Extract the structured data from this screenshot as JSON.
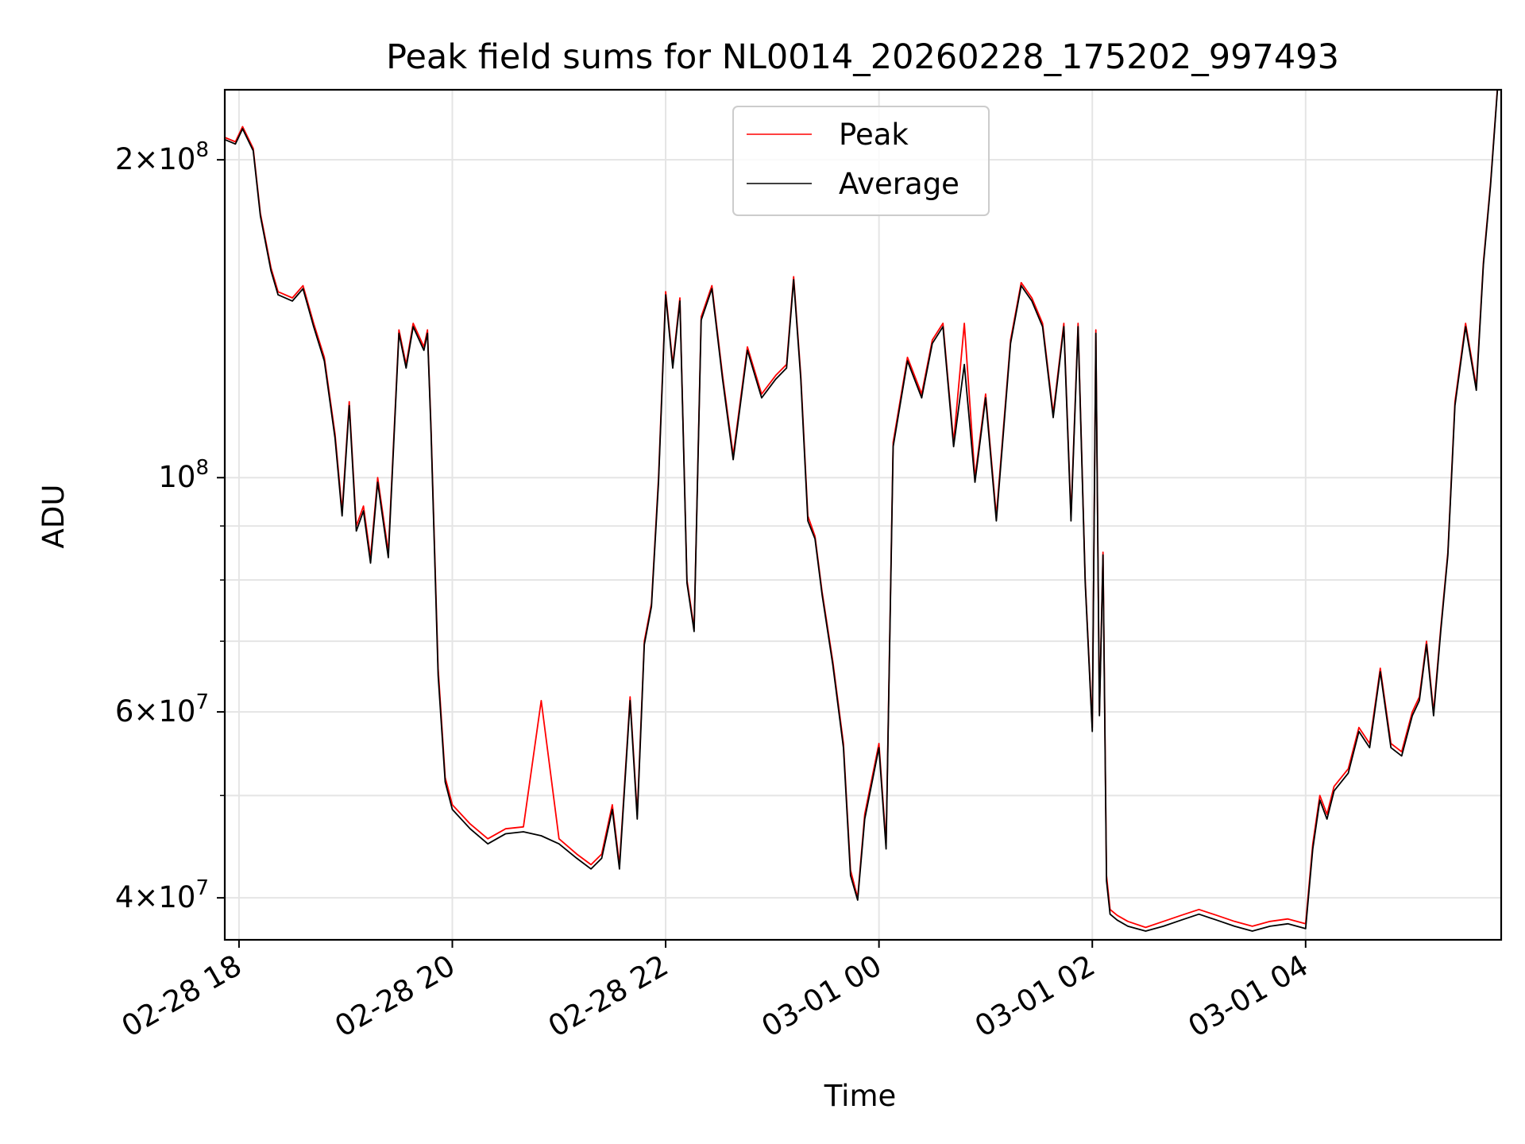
{
  "chart_data": {
    "type": "line",
    "title": "Peak field sums for NL0014_20260228_175202_997493",
    "xlabel": "Time",
    "ylabel": "ADU",
    "yscale": "log",
    "xlim": [
      "2026-02-28 17:52",
      "2026-03-01 05:50"
    ],
    "ylim": [
      36500000,
      233000000
    ],
    "grid": true,
    "legend_position": "top-center",
    "x_ticks": [
      "02-28 18",
      "02-28 20",
      "02-28 22",
      "03-01 00",
      "03-01 02",
      "03-01 04"
    ],
    "y_ticks": [
      {
        "value": 40000000,
        "base": "4",
        "exp": "7"
      },
      {
        "value": 60000000,
        "base": "6",
        "exp": "7"
      },
      {
        "value": 100000000,
        "base": "10",
        "exp": "8"
      },
      {
        "value": 200000000,
        "base": "2",
        "exp": "8"
      }
    ],
    "x": [
      "2026-02-28 17:52",
      "2026-02-28 17:58",
      "2026-02-28 18:02",
      "2026-02-28 18:08",
      "2026-02-28 18:12",
      "2026-02-28 18:18",
      "2026-02-28 18:22",
      "2026-02-28 18:30",
      "2026-02-28 18:36",
      "2026-02-28 18:42",
      "2026-02-28 18:48",
      "2026-02-28 18:54",
      "2026-02-28 18:58",
      "2026-02-28 19:02",
      "2026-02-28 19:06",
      "2026-02-28 19:10",
      "2026-02-28 19:14",
      "2026-02-28 19:18",
      "2026-02-28 19:24",
      "2026-02-28 19:30",
      "2026-02-28 19:34",
      "2026-02-28 19:38",
      "2026-02-28 19:44",
      "2026-02-28 19:46",
      "2026-02-28 19:48",
      "2026-02-28 19:52",
      "2026-02-28 19:56",
      "2026-02-28 20:00",
      "2026-02-28 20:10",
      "2026-02-28 20:20",
      "2026-02-28 20:30",
      "2026-02-28 20:40",
      "2026-02-28 20:50",
      "2026-02-28 21:00",
      "2026-02-28 21:10",
      "2026-02-28 21:18",
      "2026-02-28 21:24",
      "2026-02-28 21:30",
      "2026-02-28 21:34",
      "2026-02-28 21:40",
      "2026-02-28 21:44",
      "2026-02-28 21:48",
      "2026-02-28 21:52",
      "2026-02-28 21:56",
      "2026-02-28 22:00",
      "2026-02-28 22:04",
      "2026-02-28 22:08",
      "2026-02-28 22:12",
      "2026-02-28 22:16",
      "2026-02-28 22:20",
      "2026-02-28 22:26",
      "2026-02-28 22:32",
      "2026-02-28 22:38",
      "2026-02-28 22:46",
      "2026-02-28 22:54",
      "2026-02-28 23:02",
      "2026-02-28 23:08",
      "2026-02-28 23:12",
      "2026-02-28 23:16",
      "2026-02-28 23:20",
      "2026-02-28 23:24",
      "2026-02-28 23:28",
      "2026-02-28 23:34",
      "2026-02-28 23:40",
      "2026-02-28 23:44",
      "2026-02-28 23:48",
      "2026-02-28 23:52",
      "2026-03-01 00:00",
      "2026-03-01 00:04",
      "2026-03-01 00:08",
      "2026-03-01 00:16",
      "2026-03-01 00:24",
      "2026-03-01 00:30",
      "2026-03-01 00:36",
      "2026-03-01 00:42",
      "2026-03-01 00:48",
      "2026-03-01 00:54",
      "2026-03-01 01:00",
      "2026-03-01 01:06",
      "2026-03-01 01:14",
      "2026-03-01 01:20",
      "2026-03-01 01:26",
      "2026-03-01 01:32",
      "2026-03-01 01:38",
      "2026-03-01 01:44",
      "2026-03-01 01:48",
      "2026-03-01 01:52",
      "2026-03-01 01:56",
      "2026-03-01 02:00",
      "2026-03-01 02:02",
      "2026-03-01 02:04",
      "2026-03-01 02:06",
      "2026-03-01 02:08",
      "2026-03-01 02:10",
      "2026-03-01 02:14",
      "2026-03-01 02:20",
      "2026-03-01 02:30",
      "2026-03-01 02:40",
      "2026-03-01 02:50",
      "2026-03-01 03:00",
      "2026-03-01 03:10",
      "2026-03-01 03:20",
      "2026-03-01 03:30",
      "2026-03-01 03:40",
      "2026-03-01 03:50",
      "2026-03-01 04:00",
      "2026-03-01 04:04",
      "2026-03-01 04:08",
      "2026-03-01 04:12",
      "2026-03-01 04:16",
      "2026-03-01 04:24",
      "2026-03-01 04:30",
      "2026-03-01 04:36",
      "2026-03-01 04:42",
      "2026-03-01 04:48",
      "2026-03-01 04:54",
      "2026-03-01 05:00",
      "2026-03-01 05:04",
      "2026-03-01 05:08",
      "2026-03-01 05:12",
      "2026-03-01 05:16",
      "2026-03-01 05:20",
      "2026-03-01 05:24",
      "2026-03-01 05:30",
      "2026-03-01 05:36",
      "2026-03-01 05:40",
      "2026-03-01 05:44",
      "2026-03-01 05:48"
    ],
    "series": [
      {
        "name": "Peak",
        "color": "#ff0000",
        "values": [
          210000000,
          208000000,
          215000000,
          205000000,
          178000000,
          158000000,
          150000000,
          148000000,
          152000000,
          140000000,
          130000000,
          110000000,
          93000000,
          118000000,
          90000000,
          94000000,
          84000000,
          100000000,
          85000000,
          138000000,
          128000000,
          140000000,
          133000000,
          138000000,
          112000000,
          66000000,
          52000000,
          49000000,
          47000000,
          45500000,
          46500000,
          46700000,
          61500000,
          45500000,
          44000000,
          43000000,
          44000000,
          49000000,
          43000000,
          62000000,
          48000000,
          70000000,
          76000000,
          100000000,
          150000000,
          128000000,
          148000000,
          80000000,
          72000000,
          142000000,
          152000000,
          125000000,
          105000000,
          133000000,
          120000000,
          125000000,
          128000000,
          155000000,
          125000000,
          92000000,
          88000000,
          78000000,
          67000000,
          56000000,
          42500000,
          40000000,
          48000000,
          56000000,
          45000000,
          108000000,
          130000000,
          120000000,
          135000000,
          140000000,
          108000000,
          140000000,
          100000000,
          120000000,
          92000000,
          135000000,
          153000000,
          148000000,
          140000000,
          115000000,
          140000000,
          92000000,
          140000000,
          80000000,
          58000000,
          138000000,
          60000000,
          85000000,
          42000000,
          39000000,
          38500000,
          38000000,
          37500000,
          38000000,
          38500000,
          39000000,
          38500000,
          38000000,
          37600000,
          38000000,
          38200000,
          37800000,
          45000000,
          50000000,
          48000000,
          51000000,
          53000000,
          58000000,
          56000000,
          66000000,
          56000000,
          55000000,
          60000000,
          62000000,
          70000000,
          60000000,
          72000000,
          85000000,
          118000000,
          140000000,
          122000000,
          160000000,
          190000000,
          235000000
        ]
      },
      {
        "name": "Average",
        "color": "#000000",
        "values": [
          209000000,
          207000000,
          214000000,
          204000000,
          177000000,
          157000000,
          149000000,
          147000000,
          151000000,
          139000000,
          129000000,
          109000000,
          92000000,
          117000000,
          89000000,
          93000000,
          83000000,
          99000000,
          84000000,
          137000000,
          127000000,
          139000000,
          132000000,
          137000000,
          111000000,
          65000000,
          51500000,
          48500000,
          46500000,
          45000000,
          46000000,
          46200000,
          45800000,
          45000000,
          43600000,
          42600000,
          43600000,
          48500000,
          42600000,
          61500000,
          47500000,
          69500000,
          75500000,
          99000000,
          149000000,
          127000000,
          147000000,
          79500000,
          71500000,
          141000000,
          151000000,
          124000000,
          104000000,
          132000000,
          119000000,
          124000000,
          127000000,
          154000000,
          124000000,
          91000000,
          87500000,
          77500000,
          66500000,
          55500000,
          42000000,
          39800000,
          47500000,
          55500000,
          44500000,
          107000000,
          129000000,
          119000000,
          134000000,
          139000000,
          107000000,
          128000000,
          99000000,
          119000000,
          91000000,
          134000000,
          152000000,
          147000000,
          139000000,
          114000000,
          139000000,
          91000000,
          139000000,
          79500000,
          57500000,
          137000000,
          59500000,
          84500000,
          41500000,
          38600000,
          38100000,
          37600000,
          37200000,
          37600000,
          38100000,
          38600000,
          38100000,
          37600000,
          37200000,
          37600000,
          37800000,
          37400000,
          44500000,
          49500000,
          47500000,
          50500000,
          52500000,
          57500000,
          55500000,
          65500000,
          55500000,
          54500000,
          59500000,
          61500000,
          69500000,
          59500000,
          71500000,
          84500000,
          117000000,
          139000000,
          121000000,
          159000000,
          189000000,
          234000000
        ]
      }
    ]
  }
}
